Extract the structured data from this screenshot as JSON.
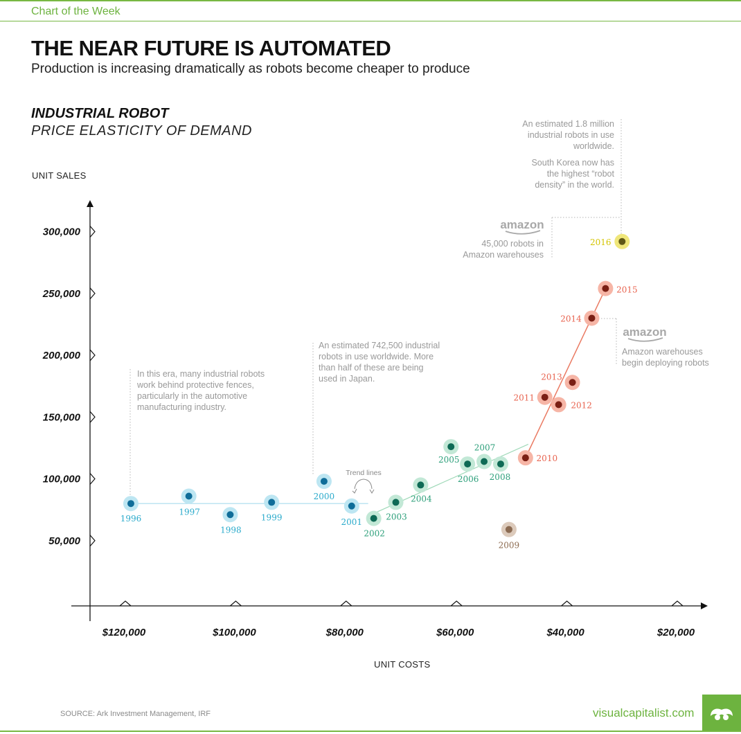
{
  "header": {
    "tagline": "Chart of the Week",
    "title": "THE NEAR FUTURE IS AUTOMATED",
    "subtitle": "Production is increasing dramatically as robots become cheaper to produce",
    "chart_title": "INDUSTRIAL ROBOT",
    "chart_subtitle": "PRICE ELASTICITY OF DEMAND"
  },
  "footer": {
    "source": "SOURCE: Ark Investment Management, IRF",
    "brand": "visualcapitalist.com"
  },
  "colors": {
    "brand_green": "#6db33f",
    "era1_blue": "#29aacb",
    "era2_green": "#2c9f7a",
    "era3_red": "#e8634f",
    "outlier_brown": "#8c6a4f",
    "highlight_yellow": "#d4c400"
  },
  "annotations": {
    "fences": [
      "In this era, many industrial robots",
      "work behind protective fences,",
      "particularly in the automotive",
      "manufacturing industry."
    ],
    "japan": [
      "An estimated 742,500 industrial",
      "robots in use worldwide. More",
      "than half of these are being",
      "used in Japan."
    ],
    "worldwide": [
      "An estimated 1.8 million",
      "industrial robots in use",
      "worldwide."
    ],
    "korea": [
      "South Korea now has",
      "the highest “robot",
      "density” in the world."
    ],
    "amazon_logo": "amazon",
    "amazon_2016": [
      "45,000 robots in",
      "Amazon warehouses"
    ],
    "amazon_2014": [
      "Amazon warehouses",
      "begin deploying robots"
    ],
    "trend_lines": "Trend lines"
  },
  "chart_data": {
    "type": "scatter",
    "title": "INDUSTRIAL ROBOT",
    "subtitle": "PRICE ELASTICITY OF DEMAND",
    "xlabel": "UNIT COSTS",
    "ylabel": "UNIT SALES",
    "x_reversed": true,
    "xlim": [
      127000,
      14000
    ],
    "ylim": [
      0,
      320000
    ],
    "x_ticks": [
      120000,
      100000,
      80000,
      60000,
      40000,
      20000
    ],
    "x_tick_labels": [
      "$120,000",
      "$100,000",
      "$80,000",
      "$60,000",
      "$40,000",
      "$20,000"
    ],
    "y_ticks": [
      50000,
      100000,
      150000,
      200000,
      250000,
      300000
    ],
    "y_tick_labels": [
      "50,000",
      "100,000",
      "150,000",
      "200,000",
      "250,000",
      "300,000"
    ],
    "grid": false,
    "points": [
      {
        "year": "1996",
        "x": 119000,
        "y": 80000,
        "group": "era1"
      },
      {
        "year": "1997",
        "x": 108500,
        "y": 86000,
        "group": "era1"
      },
      {
        "year": "1998",
        "x": 101000,
        "y": 71000,
        "group": "era1"
      },
      {
        "year": "1999",
        "x": 93500,
        "y": 81000,
        "group": "era1"
      },
      {
        "year": "2000",
        "x": 84000,
        "y": 98000,
        "group": "era1"
      },
      {
        "year": "2001",
        "x": 79000,
        "y": 78000,
        "group": "era1"
      },
      {
        "year": "2002",
        "x": 75000,
        "y": 68000,
        "group": "era2"
      },
      {
        "year": "2003",
        "x": 71000,
        "y": 81000,
        "group": "era2"
      },
      {
        "year": "2004",
        "x": 66500,
        "y": 95000,
        "group": "era2"
      },
      {
        "year": "2005",
        "x": 61000,
        "y": 126000,
        "group": "era2"
      },
      {
        "year": "2006",
        "x": 58000,
        "y": 112000,
        "group": "era2"
      },
      {
        "year": "2007",
        "x": 55000,
        "y": 114000,
        "group": "era2"
      },
      {
        "year": "2008",
        "x": 52000,
        "y": 112000,
        "group": "era2"
      },
      {
        "year": "2009",
        "x": 50500,
        "y": 59000,
        "group": "outlier"
      },
      {
        "year": "2010",
        "x": 47500,
        "y": 117000,
        "group": "era3"
      },
      {
        "year": "2011",
        "x": 44000,
        "y": 166000,
        "group": "era3"
      },
      {
        "year": "2012",
        "x": 41500,
        "y": 160000,
        "group": "era3"
      },
      {
        "year": "2013",
        "x": 39000,
        "y": 178000,
        "group": "era3"
      },
      {
        "year": "2014",
        "x": 35500,
        "y": 230000,
        "group": "era3"
      },
      {
        "year": "2015",
        "x": 33000,
        "y": 254000,
        "group": "era3"
      },
      {
        "year": "2016",
        "x": 30000,
        "y": 292000,
        "group": "highlight"
      }
    ],
    "trend_lines": [
      {
        "group": "era1",
        "from": [
          119000,
          80000
        ],
        "to": [
          76000,
          80000
        ]
      },
      {
        "group": "era2",
        "from": [
          76000,
          70000
        ],
        "to": [
          47000,
          128000
        ]
      },
      {
        "group": "era3",
        "from": [
          47500,
          117000
        ],
        "to": [
          33000,
          254000
        ]
      }
    ]
  }
}
